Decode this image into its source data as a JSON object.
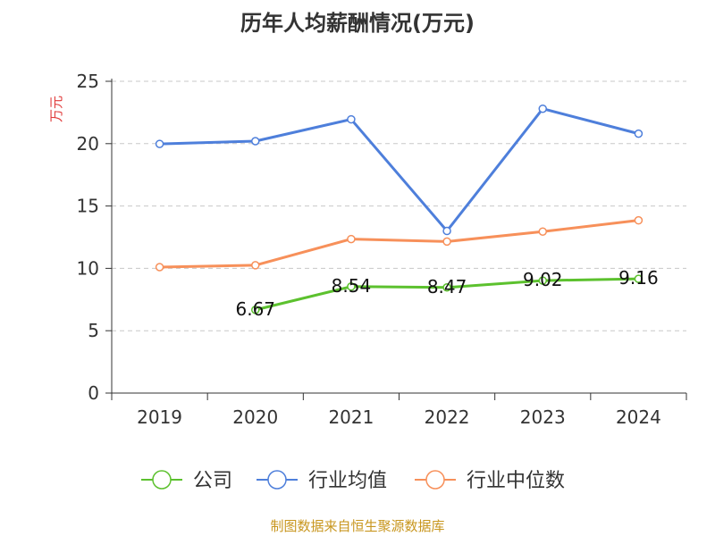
{
  "chart_data": {
    "type": "line",
    "title": "历年人均薪酬情况(万元)",
    "ylabel": "万元",
    "xlabel": "",
    "ylim": [
      0,
      25
    ],
    "yticks": [
      0,
      5,
      10,
      15,
      20,
      25
    ],
    "categories": [
      "2019",
      "2020",
      "2021",
      "2022",
      "2023",
      "2024"
    ],
    "grid": true,
    "legend_position": "bottom",
    "series": [
      {
        "name": "公司",
        "color": "#5cc12e",
        "values": [
          null,
          6.67,
          8.54,
          8.47,
          9.02,
          9.16
        ],
        "data_labels": [
          "",
          "6.67",
          "8.54",
          "8.47",
          "9.02",
          "9.16"
        ]
      },
      {
        "name": "行业均值",
        "color": "#4e7fdb",
        "values": [
          19.98,
          20.2,
          21.95,
          13.0,
          22.8,
          20.8
        ],
        "data_labels": [
          "",
          "",
          "",
          "",
          "",
          ""
        ]
      },
      {
        "name": "行业中位数",
        "color": "#f7905a",
        "values": [
          10.1,
          10.25,
          12.35,
          12.15,
          12.95,
          13.85
        ],
        "data_labels": [
          "",
          "",
          "",
          "",
          "",
          ""
        ]
      }
    ]
  },
  "footer": {
    "source": "制图数据来自恒生聚源数据库"
  }
}
